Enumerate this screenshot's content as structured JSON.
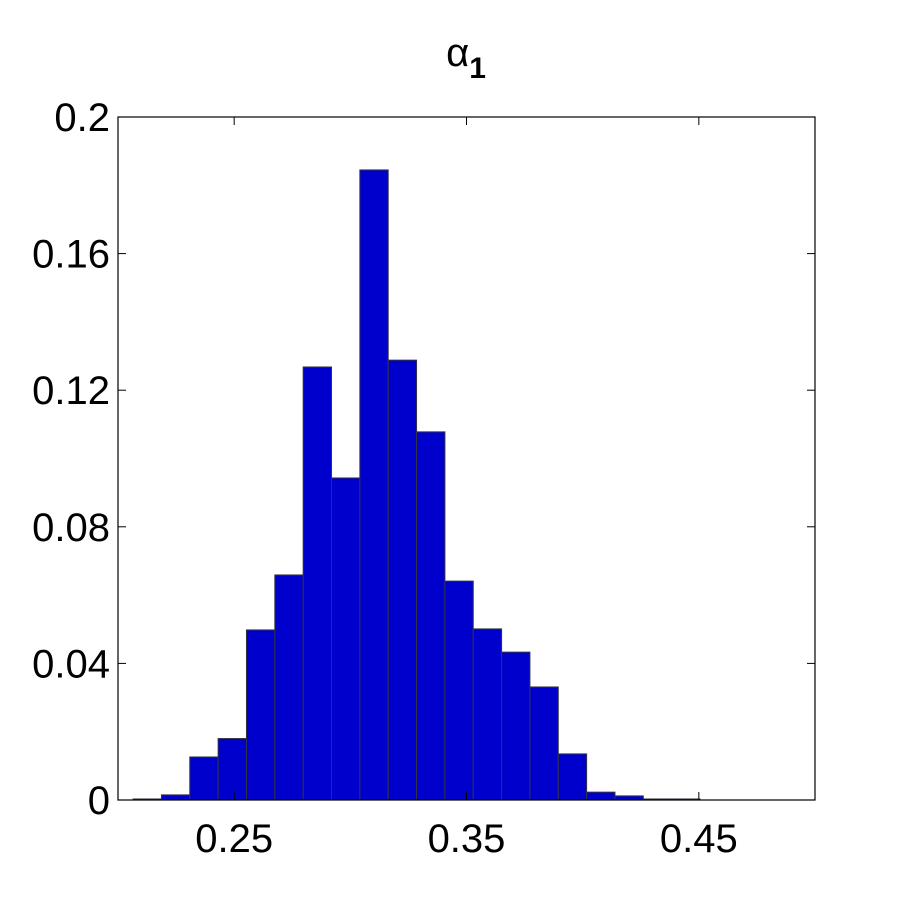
{
  "chart_data": {
    "type": "histogram",
    "title": {
      "text": "α",
      "subscript": "1"
    },
    "bins": [
      0.2065,
      0.2187,
      0.2309,
      0.2431,
      0.2553,
      0.2675,
      0.2797,
      0.2919,
      0.3041,
      0.3163,
      0.3285,
      0.3407,
      0.3529,
      0.3651,
      0.3773,
      0.3895,
      0.4017,
      0.4139,
      0.4261,
      0.4383,
      0.4505
    ],
    "values": [
      0.0003,
      0.0015,
      0.0126,
      0.018,
      0.0498,
      0.0659,
      0.1268,
      0.0943,
      0.1845,
      0.1288,
      0.1078,
      0.0641,
      0.0501,
      0.0433,
      0.0331,
      0.0135,
      0.0023,
      0.0012,
      0.0003,
      0.0003
    ],
    "color": "#0000cc",
    "edgecolor": "#333344",
    "xlim": [
      0.2,
      0.5
    ],
    "xticks": [
      0.25,
      0.35,
      0.45
    ],
    "ylim": [
      0,
      0.2
    ],
    "yticks": [
      0,
      0.04,
      0.08,
      0.12,
      0.16,
      0.2
    ],
    "grid": false
  }
}
